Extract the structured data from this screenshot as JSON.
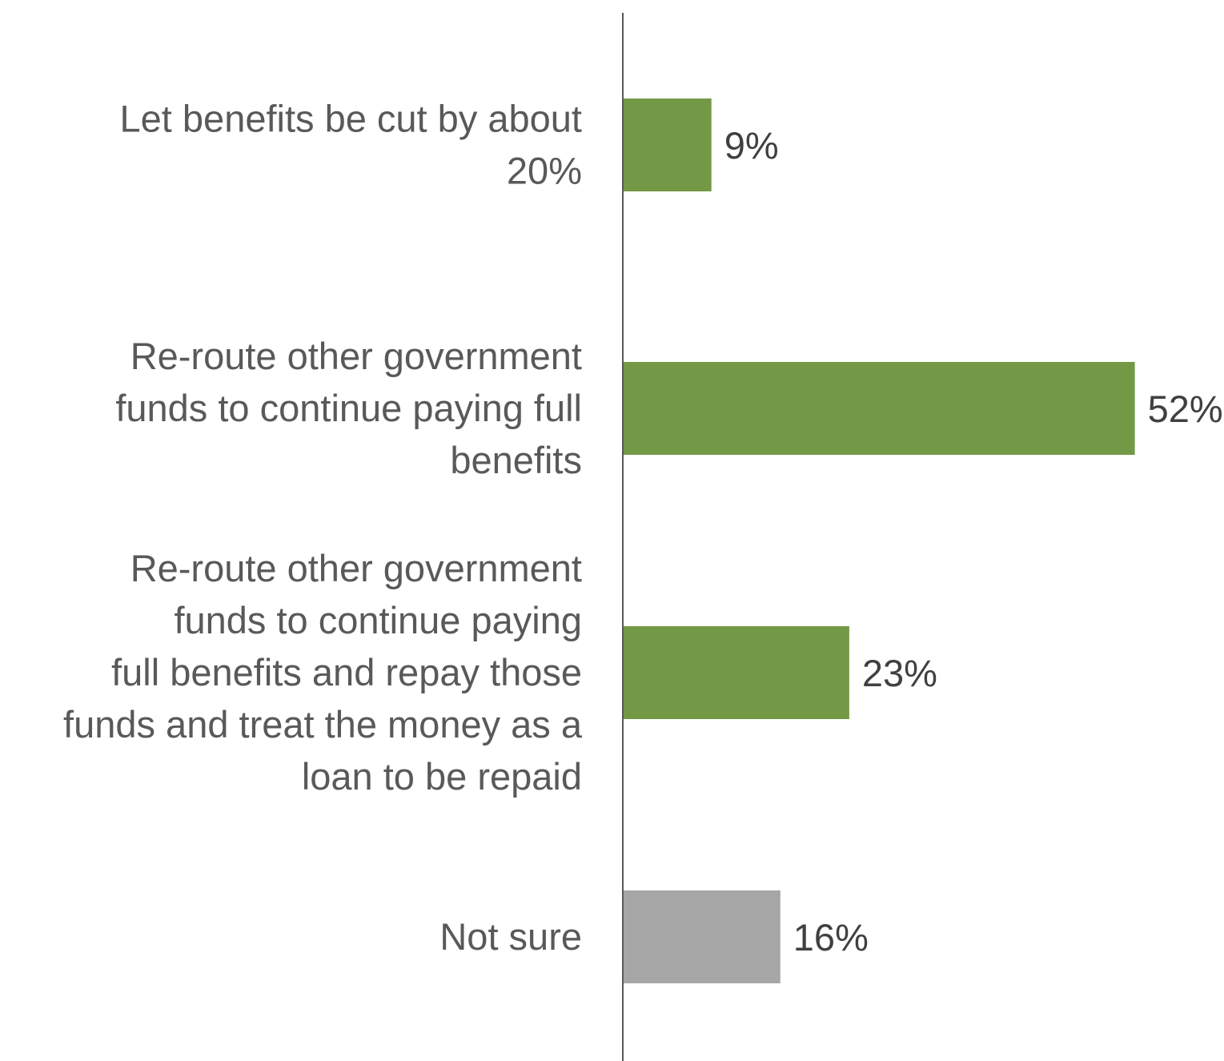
{
  "chart_data": {
    "type": "bar",
    "orientation": "horizontal",
    "categories": [
      [
        "Let benefits be cut by about",
        "20%"
      ],
      [
        "Re-route other government",
        "funds to continue paying full",
        "benefits"
      ],
      [
        "Re-route other government",
        "funds to continue paying",
        "full benefits and repay those",
        "funds and treat the money as a",
        "loan to be repaid"
      ],
      [
        "Not sure"
      ]
    ],
    "values": [
      9,
      52,
      23,
      16
    ],
    "value_labels": [
      "9%",
      "52%",
      "23%",
      "16%"
    ],
    "bar_colors": [
      "#739846",
      "#739846",
      "#739846",
      "#a6a6a6"
    ],
    "title": "",
    "xlabel": "",
    "ylabel": "",
    "xlim": [
      0,
      58
    ],
    "grid": false,
    "legend": "none"
  }
}
